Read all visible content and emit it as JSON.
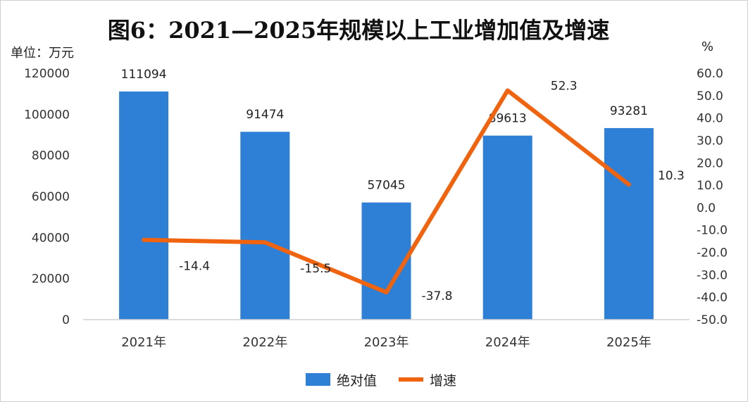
{
  "chart_data": {
    "type": "bar+line",
    "title": "图6：2021—2025年规模以上工业增加值及增速",
    "left_unit": "单位：万元",
    "right_unit": "%",
    "categories": [
      "2021年",
      "2022年",
      "2023年",
      "2024年",
      "2025年"
    ],
    "series": [
      {
        "name": "绝对值",
        "type": "bar",
        "axis": "left",
        "color": "#2e7fd6",
        "values": [
          111094,
          91474,
          57045,
          89613,
          93281
        ],
        "labels": [
          "111094",
          "91474",
          "57045",
          "89613",
          "93281"
        ]
      },
      {
        "name": "增速",
        "type": "line",
        "axis": "right",
        "color": "#f0630f",
        "values": [
          -14.4,
          -15.5,
          -37.8,
          52.3,
          10.3
        ],
        "labels": [
          "-14.4",
          "-15.5",
          "-37.8",
          "52.3",
          "10.3"
        ]
      }
    ],
    "left_axis": {
      "min": 0,
      "max": 120000,
      "ticks": [
        0,
        20000,
        40000,
        60000,
        80000,
        100000,
        120000
      ],
      "tick_labels": [
        "0",
        "20000",
        "40000",
        "60000",
        "80000",
        "100000",
        "120000"
      ]
    },
    "right_axis": {
      "min": -50,
      "max": 60,
      "ticks": [
        60,
        50,
        40,
        30,
        20,
        10,
        0,
        -10,
        -20,
        -30,
        -40,
        -50
      ],
      "tick_labels": [
        "60.0",
        "50.0",
        "40.0",
        "30.0",
        "20.0",
        "10.0",
        "0.0",
        "-10.0",
        "-20.0",
        "-30.0",
        "-40.0",
        "-50.0"
      ]
    },
    "grid": false,
    "legend_position": "bottom-center"
  }
}
